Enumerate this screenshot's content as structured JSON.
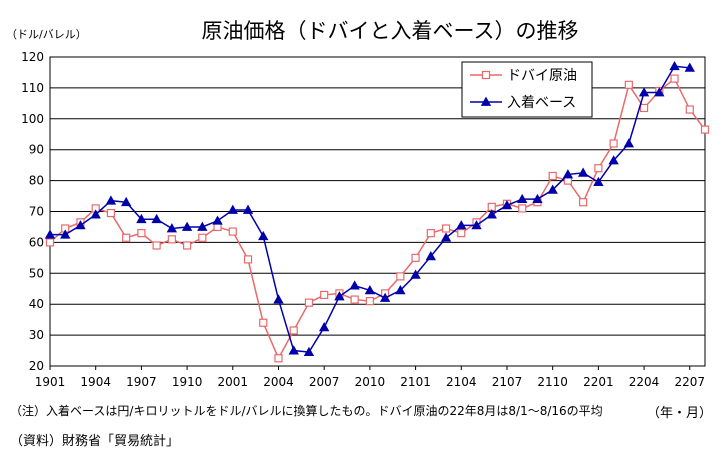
{
  "chart_data": {
    "type": "line",
    "title": "原油価格（ドバイと入着ベース）の推移",
    "ylabel": "（ドル/バレル）",
    "xlabel": "（年・月）",
    "ylim": [
      20,
      120
    ],
    "yticks": [
      20,
      30,
      40,
      50,
      60,
      70,
      80,
      90,
      100,
      110,
      120
    ],
    "xticklabels": [
      "1901",
      "1904",
      "1907",
      "1910",
      "2001",
      "2004",
      "2007",
      "2010",
      "2101",
      "2104",
      "2107",
      "2110",
      "2201",
      "2204",
      "2207"
    ],
    "grid": true,
    "legend_position": "top-right",
    "x": [
      "1901",
      "1902",
      "1903",
      "1904",
      "1905",
      "1906",
      "1907",
      "1908",
      "1909",
      "1910",
      "1911",
      "1912",
      "2001",
      "2002",
      "2003",
      "2004",
      "2005",
      "2006",
      "2007",
      "2008",
      "2009",
      "2010",
      "2011",
      "2012",
      "2101",
      "2102",
      "2103",
      "2104",
      "2105",
      "2106",
      "2107",
      "2108",
      "2109",
      "2110",
      "2111",
      "2112",
      "2201",
      "2202",
      "2203",
      "2204",
      "2205",
      "2206",
      "2207",
      "2208"
    ],
    "series": [
      {
        "name": "ドバイ原油",
        "color": "#e8696c",
        "marker": "square-open",
        "values": [
          60,
          64.5,
          66.5,
          71,
          69.5,
          61.5,
          63,
          59,
          61,
          59,
          61.5,
          65,
          63.5,
          54.5,
          34,
          22.5,
          31.5,
          40.5,
          43,
          43.5,
          41.5,
          41,
          43.5,
          49,
          55,
          63,
          64.5,
          63,
          66.5,
          71.5,
          72.5,
          71,
          73,
          81.5,
          80,
          73,
          84,
          92,
          111,
          103.5,
          109,
          113,
          103,
          96.5
        ]
      },
      {
        "name": "入着ベース",
        "color": "#0000aa",
        "marker": "triangle",
        "values": [
          62.5,
          62.5,
          65.5,
          69,
          73.5,
          73,
          67.5,
          67.5,
          64.5,
          65,
          65,
          67,
          70.5,
          70.5,
          62,
          41.5,
          25,
          24.5,
          32.5,
          42.5,
          46,
          44.5,
          42,
          44.5,
          49.5,
          55.5,
          61.5,
          65.5,
          65.5,
          69,
          72,
          74,
          74,
          77,
          82,
          82.5,
          79.5,
          86.5,
          92,
          108.5,
          108.5,
          117,
          116.5,
          null
        ]
      }
    ]
  },
  "notes": {
    "note1": "（注）入着ベースは円/キロリットルをドル/バレルに換算したもの。ドバイ原油の22年8月は8/1～8/16の平均",
    "source": "（資料）財務省「貿易統計」"
  }
}
